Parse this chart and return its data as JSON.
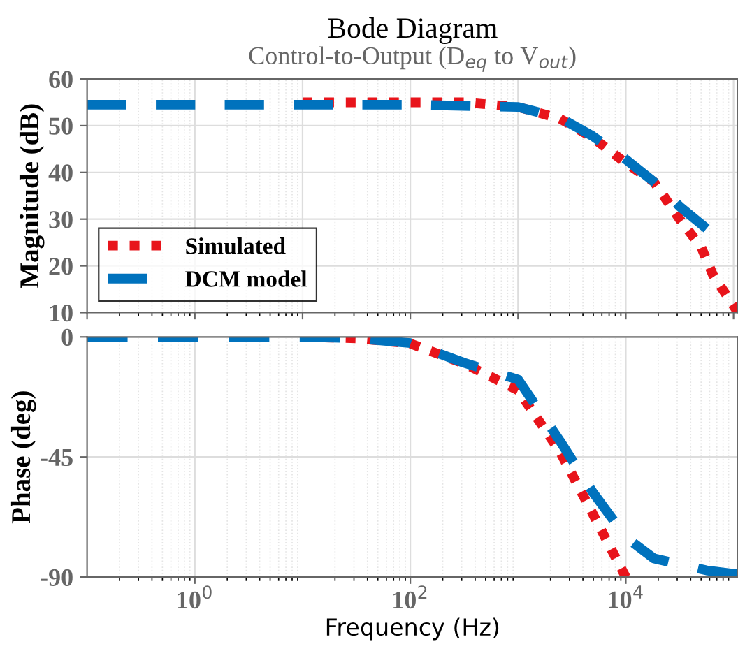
{
  "chart_data": [
    {
      "type": "line",
      "title": "Bode Diagram",
      "subtitle": "Control-to-Output (D$_{eq}$ to V$_{out}$)",
      "ylabel": "Magnitude (dB)",
      "xlim": [
        0.1,
        110000
      ],
      "log": "x",
      "ylim": [
        10,
        60
      ],
      "yticks": [
        10,
        20,
        30,
        40,
        50,
        60
      ],
      "grid": true,
      "legend": "bottom left",
      "tick_labels": "y",
      "series": [
        {
          "name": "Simulated",
          "color": "#e8141b",
          "line_style": "dotted",
          "x": [
            10,
            100,
            316,
            1000,
            2450,
            4900,
            10000,
            18200,
            31600,
            50100,
            64600,
            110000
          ],
          "values": [
            55,
            55,
            55,
            54,
            51.5,
            47.5,
            42,
            38,
            30,
            24,
            18,
            10
          ]
        },
        {
          "name": "DCM model",
          "color": "#0072bd",
          "line_style": "dashed",
          "x": [
            0.1,
            1,
            10,
            100,
            1000,
            2450,
            4900,
            10000,
            18200,
            32400,
            56200
          ],
          "values": [
            54.5,
            54.5,
            54.5,
            54.5,
            54,
            51.7,
            47.8,
            42.8,
            38,
            32.5,
            28
          ]
        }
      ]
    },
    {
      "type": "line",
      "ylabel": "Phase (deg)",
      "xlabel": "Frequency (Hz)",
      "xlim": [
        0.1,
        110000
      ],
      "log": "x",
      "xticks": [
        {
          "value": 1,
          "label": "10$^{0}$"
        },
        {
          "value": 100,
          "label": "10$^{2}$"
        },
        {
          "value": 10000,
          "label": "10$^{4}$"
        }
      ],
      "ylim": [
        -90,
        0
      ],
      "yticks": [
        -90,
        -45,
        0
      ],
      "grid": true,
      "series": [
        {
          "color": "#e8141b",
          "line_style": "dotted",
          "x": [
            10,
            31.6,
            100,
            316,
            1000,
            2450,
            4900,
            10000
          ],
          "values": [
            0,
            -0.5,
            -2.5,
            -10,
            -20,
            -43,
            -66,
            -90
          ]
        },
        {
          "color": "#0072bd",
          "line_style": "dashed",
          "x": [
            0.1,
            1,
            10,
            31.6,
            100,
            316,
            1000,
            2450,
            4900,
            10000,
            18200,
            56200,
            110000
          ],
          "values": [
            0,
            0,
            0,
            -0.5,
            -2.3,
            -9.7,
            -16,
            -39,
            -58,
            -75,
            -83,
            -87.5,
            -89
          ]
        }
      ]
    }
  ]
}
